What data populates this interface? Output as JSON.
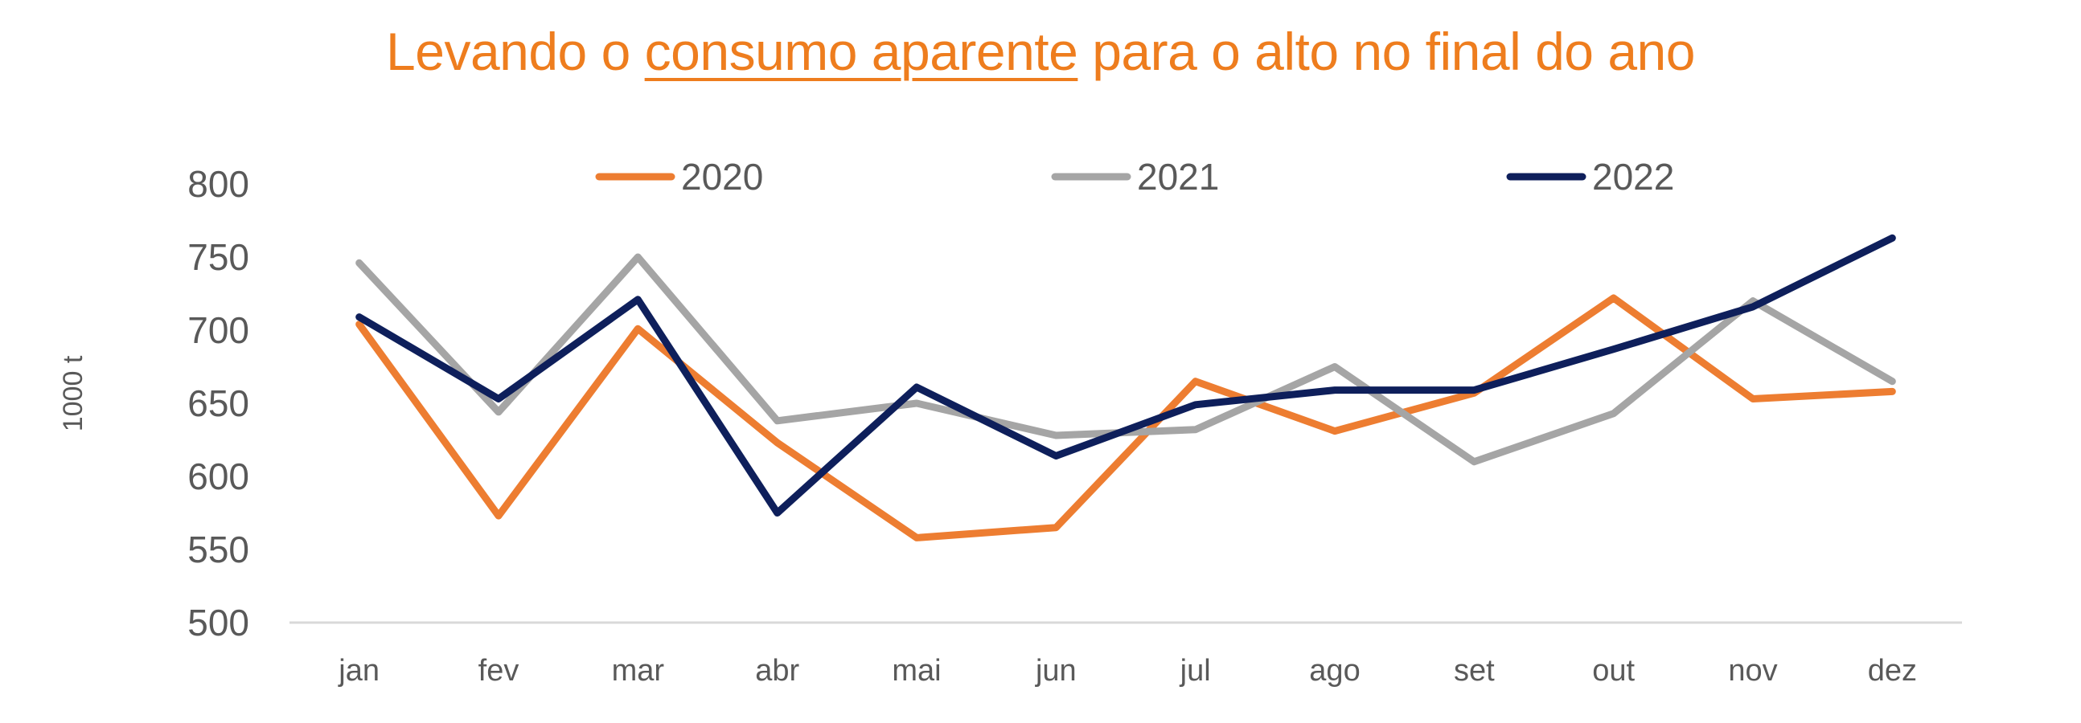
{
  "title": {
    "before": "Levando o ",
    "underlined": "consumo aparente",
    "after": " para o alto no final do ano"
  },
  "colors": {
    "title": "#EE7D1E",
    "series_2020": "#ED7D31",
    "series_2021": "#A5A5A5",
    "series_2022": "#0E1F5B",
    "axis": "#D9D9D9",
    "text": "#595959"
  },
  "chart_data": {
    "type": "line",
    "ylabel": "1000 t",
    "xlabel": "",
    "ylim": [
      500,
      800
    ],
    "yticks": [
      500,
      550,
      600,
      650,
      700,
      750,
      800
    ],
    "grid": false,
    "legend_position": "top",
    "categories": [
      "jan",
      "fev",
      "mar",
      "abr",
      "mai",
      "jun",
      "jul",
      "ago",
      "set",
      "out",
      "nov",
      "dez"
    ],
    "series": [
      {
        "name": "2020",
        "color": "#ED7D31",
        "values": [
          704,
          573,
          701,
          623,
          558,
          565,
          665,
          631,
          657,
          722,
          653,
          658
        ]
      },
      {
        "name": "2021",
        "color": "#A5A5A5",
        "values": [
          746,
          644,
          750,
          638,
          650,
          628,
          632,
          675,
          610,
          643,
          720,
          665
        ]
      },
      {
        "name": "2022",
        "color": "#0E1F5B",
        "values": [
          709,
          653,
          721,
          575,
          661,
          614,
          649,
          659,
          659,
          687,
          716,
          763
        ]
      }
    ]
  }
}
